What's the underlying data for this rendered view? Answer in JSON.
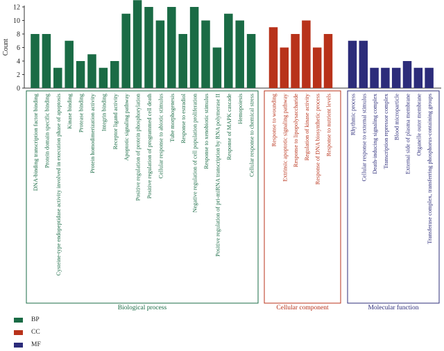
{
  "chart_data": {
    "type": "bar",
    "ylabel": "Count",
    "ylim": [
      0,
      12
    ],
    "yticks": [
      0,
      2,
      4,
      6,
      8,
      10,
      12
    ],
    "groups": [
      {
        "name": "Biological process",
        "legend": "BP",
        "color": "#1a6b45",
        "categories": [
          "DNA-binding transcription factor binding",
          "Protein domain specific binding",
          "Cysteine-type endopeptidase activity involved in execution phase of apoptosis",
          "Kinase binding",
          "Protease binding",
          "Protein homodimerization activity",
          "Integrin binding",
          "Receptor ligand activity",
          "Apoptotic signaling pathway",
          "Positive regulation of protein phosphorylation",
          "Positive regulation of programmed cell death",
          "Cellular response to abiotic stimulus",
          "Tube morphogenesis",
          "Response to estradiol",
          "Negative regulation of cell population proliferation",
          "Response to xenobiotic stimulus",
          "Positive regulation of pri-miRNA transcription by RNA polymerase II",
          "Response of MAPK cascade",
          "Hemopoiesis",
          "Cellular response to chemical stress"
        ],
        "values": [
          8,
          8,
          3,
          7,
          4,
          5,
          3,
          4,
          11,
          13,
          12,
          10,
          12,
          8,
          12,
          10,
          6,
          11,
          10,
          8
        ]
      },
      {
        "name": "Cellular component",
        "legend": "CC",
        "color": "#b8321a",
        "categories": [
          "Response to wounding",
          "Extrinsic apoptotic signaling pathway",
          "Response to lipopolysaccharide",
          "Regulation of kinase activity",
          "Response of DNA biosynthetic process",
          "Response to nutrient levels"
        ],
        "values": [
          9,
          6,
          8,
          10,
          6,
          8
        ]
      },
      {
        "name": "Molecular function",
        "legend": "MF",
        "color": "#2c2c7a",
        "categories": [
          "Rhythmic process",
          "Cellular response to external stimulus",
          "Death-inducing signaling complex",
          "Transcription repressor complex",
          "Blood microparticle",
          "External side of plasma membrane",
          "Organelle outer membrane",
          "Transferase complex, transferring phosphorus-containing groups"
        ],
        "values": [
          7,
          7,
          3,
          3,
          3,
          4,
          3,
          3
        ]
      }
    ]
  }
}
